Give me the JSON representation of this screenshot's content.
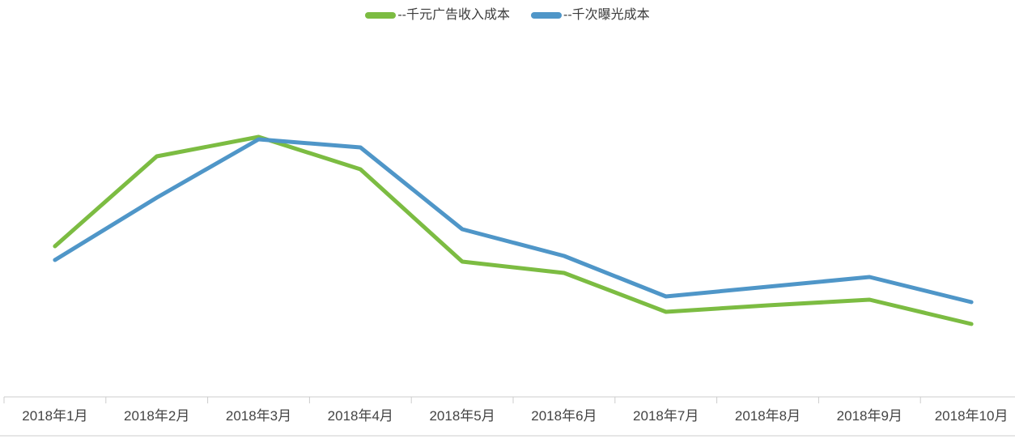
{
  "chart_data": {
    "type": "line",
    "title": "",
    "xlabel": "",
    "ylabel": "",
    "y_axis_visible": false,
    "grid": false,
    "legend_position": "top-center",
    "value_units": "relative (no y-axis scale shown in chart)",
    "ylim": [
      0,
      430
    ],
    "categories": [
      "2018年1月",
      "2018年2月",
      "2018年3月",
      "2018年4月",
      "2018年5月",
      "2018年6月",
      "2018年7月",
      "2018年8月",
      "2018年9月",
      "2018年10月"
    ],
    "series": [
      {
        "name": "--千元广告收入成本",
        "color": "#7cbc42",
        "values": [
          186,
          297,
          321,
          281,
          167,
          153,
          105,
          113,
          120,
          90
        ]
      },
      {
        "name": "--千次曝光成本",
        "color": "#4f96c8",
        "values": [
          169,
          246,
          318,
          308,
          207,
          174,
          124,
          136,
          148,
          117
        ]
      }
    ]
  }
}
